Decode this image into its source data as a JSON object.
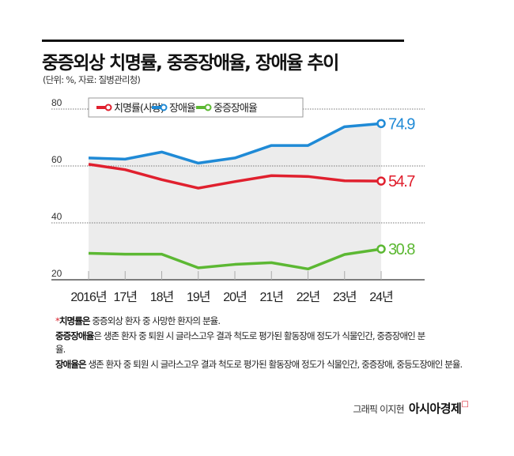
{
  "title": "중증외상 치명률, 중증장애율, 장애율 추이",
  "subtitle": "(단위: %, 자료: 질병관리청)",
  "chart_data": {
    "type": "line",
    "categories": [
      "2016년",
      "17년",
      "18년",
      "19년",
      "20년",
      "21년",
      "22년",
      "23년",
      "24년"
    ],
    "ylim": [
      20,
      80
    ],
    "yticks": [
      "80",
      "60",
      "40",
      "20"
    ],
    "yticks_values": [
      80,
      60,
      40,
      20
    ],
    "grid": true,
    "legend_placement": "top-left",
    "series": [
      {
        "name": "치명률(사망)",
        "color": "#e0202e",
        "values": [
          60.6,
          58.7,
          55.2,
          52.2,
          54.5,
          56.6,
          56.3,
          54.8,
          54.7
        ],
        "end_label": "54.7"
      },
      {
        "name": "장애율",
        "color": "#1f8ad6",
        "values": [
          62.8,
          62.4,
          64.9,
          61.0,
          62.8,
          67.2,
          67.2,
          73.8,
          74.9
        ],
        "end_label": "74.9"
      },
      {
        "name": "중증장애율",
        "color": "#5cb833",
        "values": [
          29.3,
          29.0,
          29.0,
          24.2,
          25.4,
          26.0,
          23.8,
          28.9,
          30.8
        ],
        "end_label": "30.8"
      }
    ],
    "area_under": "장애율",
    "area_color": "#ececec"
  },
  "notes": [
    {
      "star": "*",
      "bold": "치명률은",
      "text": " 중증외상 환자 중 사망한 환자의 분율."
    },
    {
      "star": "",
      "bold": "중증장애율",
      "text": "은 생존 환자 중 퇴원 시 글라스고우 결과 척도로 평가된 활동장애 정도가 식물인간, 중증장애인 분율."
    },
    {
      "star": "",
      "bold": "장애율은",
      "text": " 생존 환자 중 퇴원 시 글라스고우 결과 척도로 평가된 활동장애 정도가 식물인간, 중증장애, 중등도장애인 분율."
    }
  ],
  "credit": {
    "text": "그래픽 이지현",
    "brand": "아시아경제",
    "mark": "ㅁ"
  }
}
